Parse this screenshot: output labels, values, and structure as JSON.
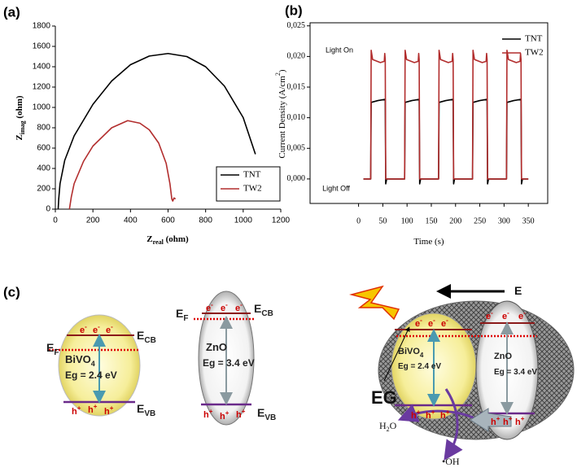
{
  "chart_data": [
    {
      "type": "line",
      "panel_label": "(a)",
      "xlabel": [
        "Z",
        "real",
        " (ohm)"
      ],
      "ylabel": [
        "Z",
        "imag",
        " (ohm)"
      ],
      "xlim": [
        0,
        1200
      ],
      "xticks": [
        0,
        200,
        400,
        600,
        800,
        1000,
        1200
      ],
      "ylim": [
        0,
        1800
      ],
      "yticks": [
        0,
        200,
        400,
        600,
        800,
        1000,
        1200,
        1400,
        1600,
        1800
      ],
      "grid": false,
      "legend": "lower right",
      "series": [
        {
          "name": "TNT",
          "color": "#000000",
          "x": [
            15,
            18,
            25,
            50,
            100,
            200,
            300,
            400,
            500,
            600,
            700,
            800,
            900,
            1000,
            1065
          ],
          "values": [
            0,
            100,
            250,
            480,
            720,
            1030,
            1260,
            1420,
            1505,
            1530,
            1500,
            1400,
            1210,
            900,
            540
          ]
        },
        {
          "name": "TW2",
          "color": "#b22d2d",
          "x": [
            75,
            85,
            100,
            150,
            200,
            300,
            385,
            450,
            500,
            550,
            590,
            610,
            620,
            625,
            632,
            640
          ],
          "values": [
            0,
            120,
            250,
            470,
            620,
            800,
            870,
            845,
            780,
            650,
            450,
            250,
            100,
            80,
            110,
            100
          ]
        }
      ]
    },
    {
      "type": "line",
      "panel_label": "(b)",
      "xlabel": [
        "Time (s)"
      ],
      "ylabel": [
        "Current Density (A/cm",
        "2",
        ")"
      ],
      "xlim": [
        -100,
        390
      ],
      "xticks": [
        0,
        50,
        100,
        150,
        200,
        250,
        300,
        350
      ],
      "ylim": [
        -0.004,
        0.0255
      ],
      "yticks": [
        {
          "value": 0,
          "label": "0,000"
        },
        {
          "value": 0.005,
          "label": "0,005"
        },
        {
          "value": 0.01,
          "label": "0,010"
        },
        {
          "value": 0.015,
          "label": "0,015"
        },
        {
          "value": 0.02,
          "label": "0,020"
        },
        {
          "value": 0.025,
          "label": "0,025"
        }
      ],
      "grid": false,
      "legend": "upper right",
      "annotations": [
        "Light On",
        "Light Off"
      ],
      "series": [
        {
          "name": "TNT",
          "color": "#000000",
          "x": [
            10,
            25,
            26,
            40,
            55,
            56,
            58,
            95,
            96,
            110,
            125,
            126,
            128,
            165,
            166,
            180,
            195,
            196,
            198,
            235,
            236,
            250,
            265,
            266,
            268,
            305,
            306,
            320,
            335,
            336,
            338,
            350
          ],
          "values": [
            0,
            0,
            0.0125,
            0.0128,
            0.013,
            -0.0008,
            0,
            0,
            0.0125,
            0.0128,
            0.013,
            -0.0008,
            0,
            0,
            0.0125,
            0.0128,
            0.013,
            -0.0008,
            0,
            0,
            0.0125,
            0.0128,
            0.013,
            -0.0008,
            0,
            0,
            0.0125,
            0.0128,
            0.013,
            -0.0008,
            0,
            0
          ]
        },
        {
          "name": "TW2",
          "color": "#b22d2d",
          "x": [
            10,
            25,
            26,
            29,
            45,
            53,
            54,
            55,
            56,
            95,
            96,
            99,
            115,
            123,
            124,
            125,
            126,
            165,
            166,
            169,
            185,
            193,
            194,
            195,
            196,
            235,
            236,
            239,
            255,
            263,
            264,
            265,
            266,
            305,
            306,
            309,
            325,
            333,
            334,
            335,
            336,
            350
          ],
          "values": [
            0,
            0,
            0.021,
            0.0195,
            0.019,
            0.0192,
            0.0205,
            0.0195,
            0,
            0,
            0.021,
            0.0195,
            0.019,
            0.0192,
            0.0205,
            0.0195,
            0,
            0,
            0.021,
            0.0195,
            0.019,
            0.0192,
            0.0205,
            0.0195,
            0,
            0,
            0.021,
            0.0195,
            0.019,
            0.0192,
            0.0205,
            0.0195,
            0,
            0,
            0.021,
            0.0195,
            0.019,
            0.0192,
            0.0205,
            0.0195,
            0,
            0
          ]
        }
      ]
    }
  ],
  "diagram": {
    "panel_label": "(c)",
    "electron": "e",
    "minus": "-",
    "hole": "h",
    "plus": "+",
    "energy": "E",
    "cb": "CB",
    "vb": "VB",
    "f": "F",
    "bivo": "BiVO",
    "four": "4",
    "zno": "ZnO",
    "eg_bivo4": "Eg = 2.4 eV",
    "eg_zno": "Eg = 3.4 eV",
    "field": "E",
    "eg": "EG",
    "h2o_h": "H",
    "h2o_2": "2",
    "h2o_o": "O",
    "radical": "•OH"
  }
}
